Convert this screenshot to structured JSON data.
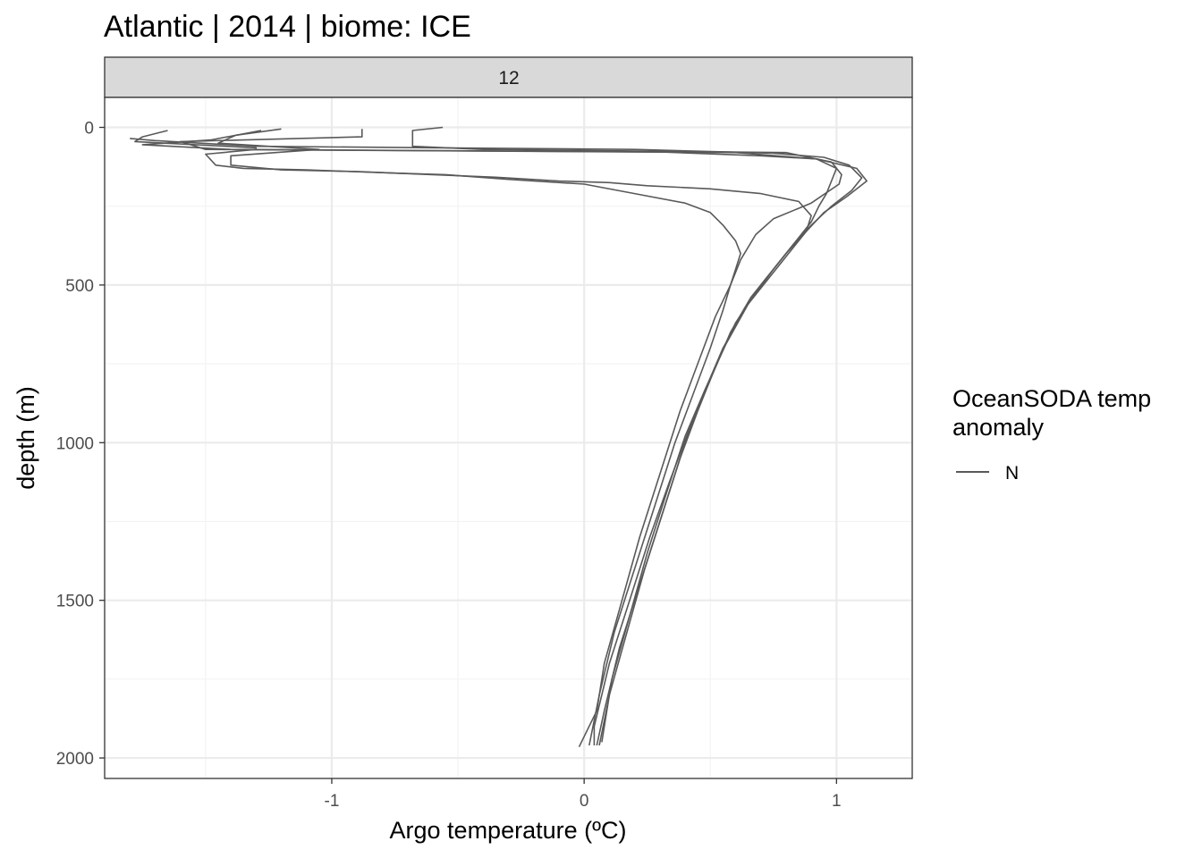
{
  "chart_data": {
    "type": "line",
    "title": "Atlantic | 2014 | biome: ICE",
    "facet_label": "12",
    "xlabel": "Argo temperature (ºC)",
    "ylabel": "depth (m)",
    "xlim": [
      -1.9,
      1.3
    ],
    "ylim": [
      2065,
      -95
    ],
    "y_reversed": true,
    "x_ticks": [
      -1,
      0,
      1
    ],
    "x_tick_labels": [
      "-1",
      "0",
      "1"
    ],
    "y_ticks": [
      0,
      500,
      1000,
      1500,
      2000
    ],
    "y_tick_labels": [
      "0",
      "500",
      "1000",
      "1500",
      "2000"
    ],
    "grid": true,
    "line_color": "#595959",
    "legend": {
      "title_line1": "OceanSODA temp",
      "title_line2": "anomaly",
      "entries": [
        "N"
      ],
      "position": "right"
    },
    "series": [
      {
        "points": [
          [
            -0.56,
            0
          ],
          [
            -0.68,
            10
          ],
          [
            -0.68,
            60
          ],
          [
            -0.4,
            70
          ],
          [
            0.8,
            80
          ],
          [
            0.98,
            110
          ],
          [
            1.02,
            150
          ],
          [
            1.01,
            180
          ],
          [
            0.9,
            240
          ],
          [
            0.75,
            290
          ],
          [
            0.68,
            340
          ],
          [
            0.62,
            420
          ],
          [
            0.58,
            500
          ],
          [
            0.52,
            600
          ],
          [
            0.45,
            750
          ],
          [
            0.38,
            900
          ],
          [
            0.3,
            1100
          ],
          [
            0.22,
            1300
          ],
          [
            0.15,
            1500
          ],
          [
            0.08,
            1700
          ],
          [
            0.05,
            1850
          ],
          [
            -0.02,
            1965
          ]
        ]
      },
      {
        "points": [
          [
            -0.88,
            5
          ],
          [
            -0.88,
            30
          ],
          [
            -1.6,
            45
          ],
          [
            -1.5,
            70
          ],
          [
            0.6,
            80
          ],
          [
            0.92,
            100
          ],
          [
            1.08,
            130
          ],
          [
            1.12,
            170
          ],
          [
            1.04,
            220
          ],
          [
            0.95,
            270
          ],
          [
            0.88,
            330
          ],
          [
            0.82,
            390
          ],
          [
            0.74,
            470
          ],
          [
            0.64,
            570
          ],
          [
            0.55,
            700
          ],
          [
            0.47,
            850
          ],
          [
            0.4,
            1000
          ],
          [
            0.32,
            1200
          ],
          [
            0.24,
            1400
          ],
          [
            0.17,
            1600
          ],
          [
            0.1,
            1800
          ],
          [
            0.06,
            1960
          ]
        ]
      },
      {
        "points": [
          [
            -1.28,
            10
          ],
          [
            -1.48,
            40
          ],
          [
            -1.75,
            55
          ],
          [
            -1.4,
            70
          ],
          [
            0.3,
            78
          ],
          [
            0.7,
            90
          ],
          [
            0.92,
            100
          ],
          [
            1.0,
            130
          ],
          [
            0.98,
            170
          ],
          [
            0.96,
            210
          ],
          [
            0.93,
            250
          ],
          [
            0.9,
            300
          ],
          [
            0.85,
            350
          ],
          [
            0.78,
            420
          ],
          [
            0.7,
            500
          ],
          [
            0.6,
            620
          ],
          [
            0.52,
            760
          ],
          [
            0.45,
            900
          ],
          [
            0.38,
            1050
          ],
          [
            0.3,
            1250
          ],
          [
            0.22,
            1450
          ],
          [
            0.14,
            1650
          ],
          [
            0.08,
            1850
          ],
          [
            0.05,
            1960
          ]
        ]
      },
      {
        "points": [
          [
            -1.65,
            10
          ],
          [
            -1.75,
            30
          ],
          [
            -1.78,
            45
          ],
          [
            -1.3,
            65
          ],
          [
            -1.3,
            70
          ],
          [
            -1.5,
            85
          ],
          [
            -1.46,
            120
          ],
          [
            -1.35,
            130
          ],
          [
            -1.1,
            135
          ],
          [
            -0.75,
            145
          ],
          [
            -0.55,
            150
          ],
          [
            -0.3,
            165
          ],
          [
            0.0,
            180
          ],
          [
            0.2,
            210
          ],
          [
            0.4,
            240
          ],
          [
            0.5,
            270
          ],
          [
            0.55,
            310
          ],
          [
            0.6,
            360
          ],
          [
            0.62,
            400
          ],
          [
            0.6,
            450
          ],
          [
            0.58,
            500
          ],
          [
            0.55,
            580
          ],
          [
            0.5,
            700
          ],
          [
            0.43,
            850
          ],
          [
            0.36,
            1000
          ],
          [
            0.28,
            1200
          ],
          [
            0.2,
            1400
          ],
          [
            0.12,
            1600
          ],
          [
            0.06,
            1800
          ],
          [
            0.02,
            1960
          ]
        ]
      },
      {
        "points": [
          [
            -1.2,
            5
          ],
          [
            -1.38,
            25
          ],
          [
            -1.45,
            50
          ],
          [
            -1.25,
            60
          ],
          [
            -1.05,
            70
          ],
          [
            -1.4,
            90
          ],
          [
            -1.4,
            120
          ],
          [
            -1.2,
            135
          ],
          [
            -0.9,
            140
          ],
          [
            -0.6,
            150
          ],
          [
            -0.35,
            158
          ],
          [
            -0.1,
            170
          ],
          [
            0.1,
            175
          ],
          [
            0.25,
            185
          ],
          [
            0.5,
            195
          ],
          [
            0.7,
            210
          ],
          [
            0.85,
            235
          ],
          [
            0.9,
            280
          ],
          [
            0.88,
            330
          ],
          [
            0.8,
            400
          ],
          [
            0.74,
            460
          ],
          [
            0.66,
            540
          ],
          [
            0.58,
            650
          ],
          [
            0.5,
            800
          ],
          [
            0.42,
            950
          ],
          [
            0.34,
            1120
          ],
          [
            0.26,
            1300
          ],
          [
            0.18,
            1500
          ],
          [
            0.1,
            1700
          ],
          [
            0.04,
            1900
          ],
          [
            0.04,
            1960
          ]
        ]
      },
      {
        "points": [
          [
            -1.8,
            35
          ],
          [
            -1.7,
            42
          ],
          [
            -1.3,
            60
          ],
          [
            0.2,
            70
          ],
          [
            0.75,
            82
          ],
          [
            0.95,
            95
          ],
          [
            1.05,
            120
          ],
          [
            1.1,
            160
          ],
          [
            1.06,
            200
          ],
          [
            0.98,
            250
          ],
          [
            0.9,
            310
          ],
          [
            0.83,
            370
          ],
          [
            0.75,
            450
          ],
          [
            0.65,
            560
          ],
          [
            0.56,
            690
          ],
          [
            0.48,
            830
          ],
          [
            0.4,
            980
          ],
          [
            0.33,
            1150
          ],
          [
            0.25,
            1350
          ],
          [
            0.18,
            1550
          ],
          [
            0.11,
            1750
          ],
          [
            0.07,
            1950
          ]
        ]
      }
    ]
  }
}
